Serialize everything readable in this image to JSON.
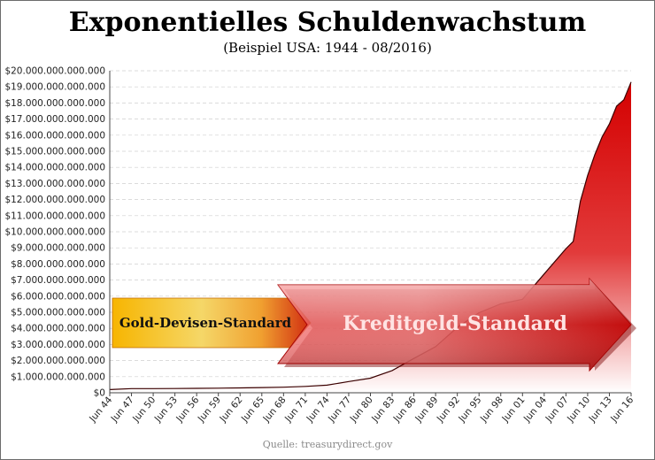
{
  "chart_data": {
    "type": "area",
    "title": "Exponentielles Schuldenwachstum",
    "subtitle": "(Beispiel USA: 1944 - 08/2016)",
    "source": "Quelle: treasurydirect.gov",
    "ylim": [
      0,
      20000000000000
    ],
    "yticks": [
      {
        "value": 0,
        "label": "$0"
      },
      {
        "value": 1000000000000,
        "label": "$1.000.000.000.000"
      },
      {
        "value": 2000000000000,
        "label": "$2.000.000.000.000"
      },
      {
        "value": 3000000000000,
        "label": "$3.000.000.000.000"
      },
      {
        "value": 4000000000000,
        "label": "$4.000.000.000.000"
      },
      {
        "value": 5000000000000,
        "label": "$5.000.000.000.000"
      },
      {
        "value": 6000000000000,
        "label": "$6.000.000.000.000"
      },
      {
        "value": 7000000000000,
        "label": "$7.000.000.000.000"
      },
      {
        "value": 8000000000000,
        "label": "$8.000.000.000.000"
      },
      {
        "value": 9000000000000,
        "label": "$9.000.000.000.000"
      },
      {
        "value": 10000000000000,
        "label": "$10.000.000.000.000"
      },
      {
        "value": 11000000000000,
        "label": "$11.000.000.000.000"
      },
      {
        "value": 12000000000000,
        "label": "$12.000.000.000.000"
      },
      {
        "value": 13000000000000,
        "label": "$13.000.000.000.000"
      },
      {
        "value": 14000000000000,
        "label": "$14.000.000.000.000"
      },
      {
        "value": 15000000000000,
        "label": "$15.000.000.000.000"
      },
      {
        "value": 16000000000000,
        "label": "$16.000.000.000.000"
      },
      {
        "value": 17000000000000,
        "label": "$17.000.000.000.000"
      },
      {
        "value": 18000000000000,
        "label": "$18.000.000.000.000"
      },
      {
        "value": 19000000000000,
        "label": "$19.000.000.000.000"
      },
      {
        "value": 20000000000000,
        "label": "$20.000.000.000.000"
      }
    ],
    "xlim": [
      1944,
      2016
    ],
    "xticks": [
      {
        "year": 1944,
        "label": "Jun 44"
      },
      {
        "year": 1947,
        "label": "Jun 47"
      },
      {
        "year": 1950,
        "label": "Jun 50"
      },
      {
        "year": 1953,
        "label": "Jun 53"
      },
      {
        "year": 1956,
        "label": "Jun 56"
      },
      {
        "year": 1959,
        "label": "Jun 59"
      },
      {
        "year": 1962,
        "label": "Jun 62"
      },
      {
        "year": 1965,
        "label": "Jun 65"
      },
      {
        "year": 1968,
        "label": "Jun 68"
      },
      {
        "year": 1971,
        "label": "Jun 71"
      },
      {
        "year": 1974,
        "label": "Jun 74"
      },
      {
        "year": 1977,
        "label": "Jun 77"
      },
      {
        "year": 1980,
        "label": "Jun 80"
      },
      {
        "year": 1983,
        "label": "Jun 83"
      },
      {
        "year": 1986,
        "label": "Jun 86"
      },
      {
        "year": 1989,
        "label": "Jun 89"
      },
      {
        "year": 1992,
        "label": "Jun 92"
      },
      {
        "year": 1995,
        "label": "Jun 95"
      },
      {
        "year": 1998,
        "label": "Jun 98"
      },
      {
        "year": 2001,
        "label": "Jun 01"
      },
      {
        "year": 2004,
        "label": "Jun 04"
      },
      {
        "year": 2007,
        "label": "Jun 07"
      },
      {
        "year": 2010,
        "label": "Jun 10"
      },
      {
        "year": 2013,
        "label": "Jun 13"
      },
      {
        "year": 2016,
        "label": "Jun 16"
      }
    ],
    "grid": true,
    "series": [
      {
        "x": [
          1944,
          1947,
          1950,
          1953,
          1956,
          1959,
          1962,
          1965,
          1968,
          1971,
          1974,
          1977,
          1980,
          1983,
          1986,
          1989,
          1992,
          1995,
          1998,
          2001,
          2004,
          2007,
          2008,
          2009,
          2010,
          2011,
          2012,
          2013,
          2014,
          2015,
          2016.6
        ],
        "y": [
          200000000000,
          258000000000,
          257000000000,
          266000000000,
          273000000000,
          285000000000,
          303000000000,
          322000000000,
          348000000000,
          398000000000,
          475000000000,
          699000000000,
          908000000000,
          1380000000000,
          2130000000000,
          2860000000000,
          4060000000000,
          4970000000000,
          5530000000000,
          5810000000000,
          7380000000000,
          8950000000000,
          9400000000000,
          11900000000000,
          13500000000000,
          14800000000000,
          15900000000000,
          16700000000000,
          17800000000000,
          18200000000000,
          19300000000000
        ]
      }
    ],
    "colors": {
      "area_top": "#d40000",
      "area_bottom": "#ffffff",
      "line": "#3a0000",
      "gold_arrow_left": "#f2a900",
      "gold_arrow_right": "#c81a00",
      "red_arrow": "#e23a3a"
    },
    "annotations": [
      {
        "label": "Gold-Devisen-Standard",
        "style": "gold-arrow",
        "span": [
          1944,
          1971
        ]
      },
      {
        "label": "Kreditgeld-Standard",
        "style": "red-arrow",
        "span": [
          1971,
          2016
        ]
      }
    ]
  }
}
